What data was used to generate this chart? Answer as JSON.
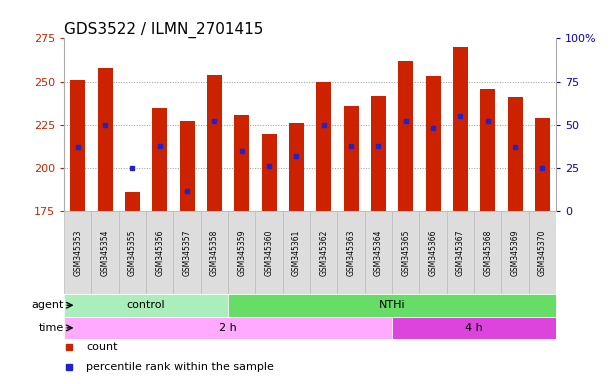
{
  "title": "GDS3522 / ILMN_2701415",
  "samples": [
    "GSM345353",
    "GSM345354",
    "GSM345355",
    "GSM345356",
    "GSM345357",
    "GSM345358",
    "GSM345359",
    "GSM345360",
    "GSM345361",
    "GSM345362",
    "GSM345363",
    "GSM345364",
    "GSM345365",
    "GSM345366",
    "GSM345367",
    "GSM345368",
    "GSM345369",
    "GSM345370"
  ],
  "counts": [
    251,
    258,
    186,
    235,
    227,
    254,
    231,
    220,
    226,
    250,
    236,
    242,
    262,
    253,
    270,
    246,
    241,
    229
  ],
  "percentile_ranks": [
    37,
    50,
    25,
    38,
    12,
    52,
    35,
    26,
    32,
    50,
    38,
    38,
    52,
    48,
    55,
    52,
    37,
    25
  ],
  "y_min": 175,
  "y_max": 275,
  "y_ticks": [
    175,
    200,
    225,
    250,
    275
  ],
  "right_y_ticks": [
    0,
    25,
    50,
    75,
    100
  ],
  "right_y_labels": [
    "0",
    "25",
    "50",
    "75",
    "100%"
  ],
  "bar_color": "#cc2200",
  "percentile_color": "#2222cc",
  "background_color": "#ffffff",
  "plot_bg": "#ffffff",
  "grid_color": "#999999",
  "agent_groups": [
    {
      "label": "control",
      "start": 0,
      "end": 6,
      "color": "#aaeebb"
    },
    {
      "label": "NTHi",
      "start": 6,
      "end": 18,
      "color": "#66dd66"
    }
  ],
  "time_groups": [
    {
      "label": "2 h",
      "start": 0,
      "end": 12,
      "color": "#ffaaff"
    },
    {
      "label": "4 h",
      "start": 12,
      "end": 18,
      "color": "#dd44dd"
    }
  ],
  "legend_count_label": "count",
  "legend_percentile_label": "percentile rank within the sample",
  "left_tick_color": "#cc2200",
  "right_tick_color": "#0000cc",
  "title_fontsize": 11,
  "tick_fontsize": 7,
  "bar_width": 0.55,
  "sample_box_color": "#dddddd",
  "sample_box_edge": "#bbbbbb"
}
